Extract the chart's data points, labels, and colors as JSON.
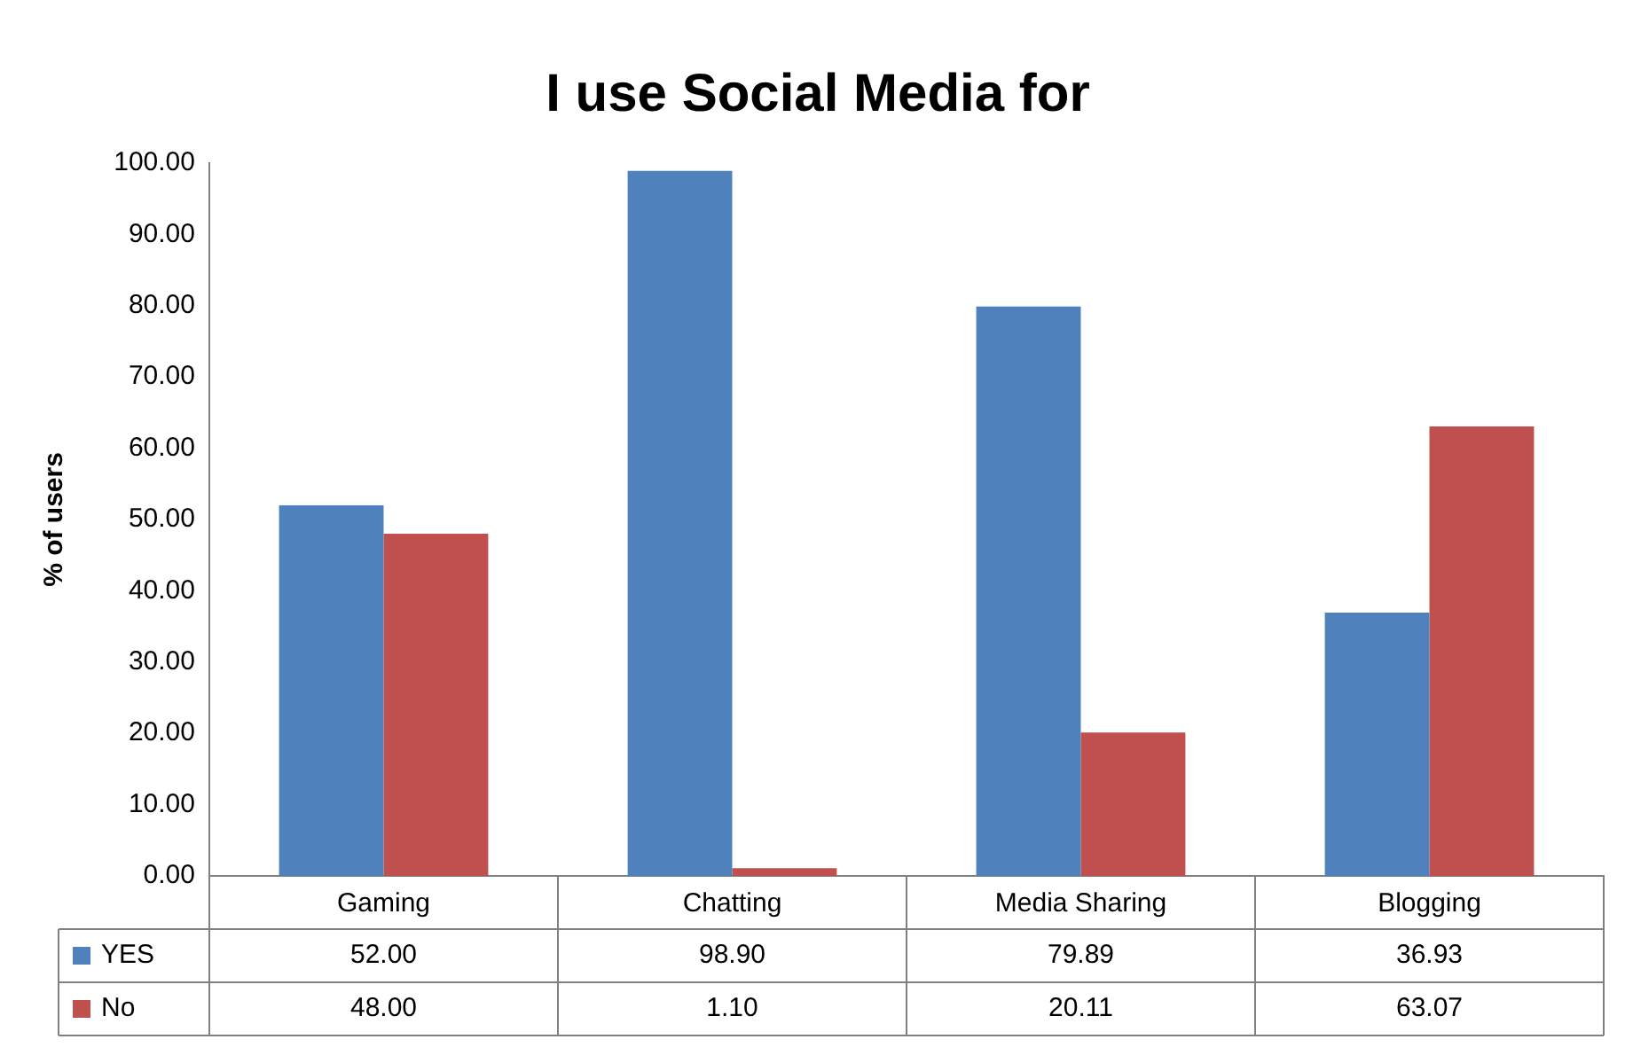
{
  "chart_data": {
    "type": "bar",
    "title": "I use Social Media for",
    "ylabel": "% of users",
    "categories": [
      "Gaming",
      "Chatting",
      "Media Sharing",
      "Blogging"
    ],
    "series": [
      {
        "name": "YES",
        "color": "#4f81bd",
        "values": [
          52,
          98.9,
          79.89,
          36.93
        ],
        "value_labels": [
          "52.00",
          "98.90",
          "79.89",
          "36.93"
        ]
      },
      {
        "name": "No",
        "color": "#c0504d",
        "values": [
          48,
          1.1,
          20.11,
          63.07
        ],
        "value_labels": [
          "48.00",
          "1.10",
          "20.11",
          "63.07"
        ]
      }
    ],
    "ylim": [
      0,
      100
    ],
    "yticks": [
      {
        "value": 0,
        "label": "0.00"
      },
      {
        "value": 10,
        "label": "10.00"
      },
      {
        "value": 20,
        "label": "20.00"
      },
      {
        "value": 30,
        "label": "30.00"
      },
      {
        "value": 40,
        "label": "40.00"
      },
      {
        "value": 50,
        "label": "50.00"
      },
      {
        "value": 60,
        "label": "60.00"
      },
      {
        "value": 70,
        "label": "70.00"
      },
      {
        "value": 80,
        "label": "80.00"
      },
      {
        "value": 90,
        "label": "90.00"
      },
      {
        "value": 100,
        "label": "100.00"
      }
    ],
    "legend": "bottom"
  }
}
